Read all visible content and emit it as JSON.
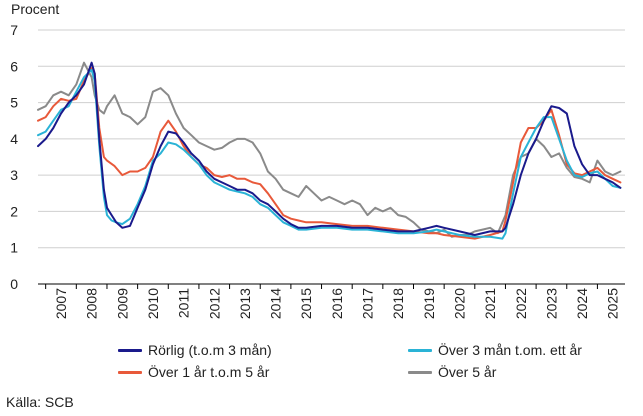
{
  "chart_data": {
    "type": "line",
    "ylabel": "Procent",
    "ylim": [
      0,
      7
    ],
    "yticks": [
      "0",
      "1",
      "2",
      "3",
      "4",
      "5",
      "6",
      "7"
    ],
    "xlim": [
      2006.75,
      2025.9
    ],
    "xticks": [
      "2007",
      "2008",
      "2009",
      "2010",
      "2011",
      "2012",
      "2013",
      "2014",
      "2015",
      "2016",
      "2017",
      "2018",
      "2019",
      "2020",
      "2021",
      "2022",
      "2023",
      "2024",
      "2025"
    ],
    "grid": "horizontal",
    "legend_position": "bottom",
    "source": "Källa: SCB",
    "series": [
      {
        "name": "Rörlig (t.o.m 3 mån)",
        "color": "#1a1a8c",
        "x": [
          2006.75,
          2007.0,
          2007.25,
          2007.5,
          2007.75,
          2008.0,
          2008.25,
          2008.5,
          2008.6,
          2008.75,
          2008.9,
          2009.0,
          2009.15,
          2009.3,
          2009.5,
          2009.75,
          2010.0,
          2010.25,
          2010.5,
          2010.75,
          2011.0,
          2011.25,
          2011.5,
          2011.75,
          2012.0,
          2012.25,
          2012.5,
          2012.75,
          2013.0,
          2013.25,
          2013.5,
          2013.75,
          2014.0,
          2014.25,
          2014.5,
          2014.75,
          2015.0,
          2015.25,
          2015.5,
          2016.0,
          2016.5,
          2017.0,
          2017.5,
          2018.0,
          2018.5,
          2019.0,
          2019.5,
          2019.75,
          2020.0,
          2020.5,
          2021.0,
          2021.5,
          2021.9,
          2022.0,
          2022.25,
          2022.5,
          2022.75,
          2023.0,
          2023.25,
          2023.5,
          2023.75,
          2024.0,
          2024.25,
          2024.5,
          2024.75,
          2025.0,
          2025.25,
          2025.5,
          2025.75
        ],
        "values": [
          3.8,
          4.0,
          4.3,
          4.7,
          5.0,
          5.2,
          5.5,
          6.1,
          5.8,
          4.0,
          2.6,
          2.1,
          1.9,
          1.7,
          1.55,
          1.6,
          2.1,
          2.6,
          3.3,
          3.8,
          4.2,
          4.15,
          3.9,
          3.6,
          3.4,
          3.1,
          2.9,
          2.8,
          2.7,
          2.6,
          2.6,
          2.5,
          2.3,
          2.2,
          2.0,
          1.8,
          1.65,
          1.55,
          1.55,
          1.6,
          1.6,
          1.55,
          1.55,
          1.5,
          1.45,
          1.45,
          1.55,
          1.6,
          1.55,
          1.45,
          1.35,
          1.45,
          1.45,
          1.55,
          2.2,
          3.0,
          3.6,
          4.0,
          4.5,
          4.9,
          4.85,
          4.7,
          3.8,
          3.3,
          3.0,
          3.0,
          2.9,
          2.8,
          2.65
        ]
      },
      {
        "name": "Över 3 mån t.om. ett år",
        "color": "#2ab3d6",
        "x": [
          2006.75,
          2007.0,
          2007.25,
          2007.5,
          2007.75,
          2008.0,
          2008.25,
          2008.5,
          2008.6,
          2008.75,
          2008.9,
          2009.0,
          2009.15,
          2009.3,
          2009.5,
          2009.75,
          2010.0,
          2010.25,
          2010.5,
          2010.75,
          2011.0,
          2011.25,
          2011.5,
          2011.75,
          2012.0,
          2012.25,
          2012.5,
          2012.75,
          2013.0,
          2013.25,
          2013.5,
          2013.75,
          2014.0,
          2014.25,
          2014.5,
          2014.75,
          2015.0,
          2015.25,
          2015.5,
          2016.0,
          2016.5,
          2017.0,
          2017.5,
          2018.0,
          2018.5,
          2019.0,
          2019.5,
          2019.75,
          2020.0,
          2020.5,
          2021.0,
          2021.5,
          2021.9,
          2022.0,
          2022.25,
          2022.5,
          2022.75,
          2023.0,
          2023.25,
          2023.5,
          2023.75,
          2024.0,
          2024.25,
          2024.5,
          2024.75,
          2025.0,
          2025.25,
          2025.5,
          2025.75
        ],
        "values": [
          4.1,
          4.2,
          4.5,
          4.8,
          4.9,
          5.3,
          5.7,
          5.9,
          5.6,
          3.8,
          2.4,
          1.9,
          1.75,
          1.7,
          1.65,
          1.8,
          2.2,
          2.7,
          3.4,
          3.6,
          3.9,
          3.85,
          3.7,
          3.5,
          3.3,
          3.0,
          2.8,
          2.7,
          2.6,
          2.55,
          2.5,
          2.4,
          2.2,
          2.1,
          1.9,
          1.7,
          1.6,
          1.5,
          1.5,
          1.55,
          1.55,
          1.5,
          1.5,
          1.45,
          1.4,
          1.4,
          1.45,
          1.5,
          1.45,
          1.35,
          1.3,
          1.3,
          1.25,
          1.4,
          2.5,
          3.5,
          3.9,
          4.3,
          4.6,
          4.6,
          4.0,
          3.4,
          3.0,
          2.95,
          3.05,
          3.1,
          2.9,
          2.7,
          2.65
        ]
      },
      {
        "name": "Över 1 år t.o.m 5 år",
        "color": "#e8593a",
        "x": [
          2006.75,
          2007.0,
          2007.25,
          2007.5,
          2007.75,
          2008.0,
          2008.25,
          2008.5,
          2008.6,
          2008.75,
          2008.9,
          2009.0,
          2009.25,
          2009.5,
          2009.75,
          2010.0,
          2010.25,
          2010.5,
          2010.75,
          2011.0,
          2011.25,
          2011.5,
          2011.75,
          2012.0,
          2012.25,
          2012.5,
          2012.75,
          2013.0,
          2013.25,
          2013.5,
          2013.75,
          2014.0,
          2014.25,
          2014.5,
          2014.75,
          2015.0,
          2015.25,
          2015.5,
          2016.0,
          2016.5,
          2017.0,
          2017.5,
          2018.0,
          2018.5,
          2019.0,
          2019.5,
          2019.75,
          2020.0,
          2020.5,
          2021.0,
          2021.5,
          2021.9,
          2022.0,
          2022.25,
          2022.5,
          2022.75,
          2023.0,
          2023.25,
          2023.5,
          2023.75,
          2024.0,
          2024.25,
          2024.5,
          2024.75,
          2025.0,
          2025.25,
          2025.5,
          2025.75
        ],
        "values": [
          4.5,
          4.6,
          4.9,
          5.1,
          5.05,
          5.1,
          5.6,
          5.95,
          5.8,
          4.3,
          3.5,
          3.4,
          3.25,
          3.0,
          3.1,
          3.1,
          3.2,
          3.5,
          4.2,
          4.5,
          4.2,
          3.8,
          3.5,
          3.3,
          3.2,
          3.0,
          2.95,
          3.0,
          2.9,
          2.9,
          2.8,
          2.75,
          2.5,
          2.2,
          1.9,
          1.8,
          1.75,
          1.7,
          1.7,
          1.65,
          1.6,
          1.6,
          1.55,
          1.5,
          1.45,
          1.4,
          1.4,
          1.35,
          1.3,
          1.25,
          1.35,
          1.45,
          1.75,
          2.8,
          3.9,
          4.3,
          4.3,
          4.5,
          4.8,
          4.1,
          3.3,
          3.05,
          3.0,
          3.1,
          3.2,
          3.0,
          2.9,
          2.8
        ]
      },
      {
        "name": "Över 5 år",
        "color": "#8a8a8a",
        "x": [
          2006.75,
          2007.0,
          2007.25,
          2007.5,
          2007.75,
          2008.0,
          2008.25,
          2008.5,
          2008.6,
          2008.75,
          2008.9,
          2009.0,
          2009.25,
          2009.5,
          2009.75,
          2010.0,
          2010.25,
          2010.5,
          2010.75,
          2011.0,
          2011.25,
          2011.5,
          2011.75,
          2012.0,
          2012.25,
          2012.5,
          2012.75,
          2013.0,
          2013.25,
          2013.5,
          2013.75,
          2014.0,
          2014.25,
          2014.5,
          2014.75,
          2015.0,
          2015.25,
          2015.5,
          2015.75,
          2016.0,
          2016.25,
          2016.5,
          2016.75,
          2017.0,
          2017.25,
          2017.5,
          2017.75,
          2018.0,
          2018.25,
          2018.5,
          2018.75,
          2019.0,
          2019.25,
          2019.5,
          2019.75,
          2020.0,
          2020.25,
          2020.5,
          2020.75,
          2021.0,
          2021.25,
          2021.5,
          2021.75,
          2022.0,
          2022.25,
          2022.5,
          2022.75,
          2023.0,
          2023.25,
          2023.5,
          2023.75,
          2024.0,
          2024.25,
          2024.5,
          2024.75,
          2025.0,
          2025.25,
          2025.5,
          2025.75
        ],
        "values": [
          4.8,
          4.9,
          5.2,
          5.3,
          5.2,
          5.5,
          6.1,
          5.7,
          5.2,
          4.8,
          4.7,
          4.9,
          5.2,
          4.7,
          4.6,
          4.4,
          4.6,
          5.3,
          5.4,
          5.2,
          4.7,
          4.3,
          4.1,
          3.9,
          3.8,
          3.7,
          3.75,
          3.9,
          4.0,
          4.0,
          3.9,
          3.6,
          3.1,
          2.9,
          2.6,
          2.5,
          2.4,
          2.7,
          2.5,
          2.3,
          2.4,
          2.3,
          2.2,
          2.3,
          2.2,
          1.9,
          2.1,
          2.0,
          2.1,
          1.9,
          1.85,
          1.7,
          1.5,
          1.45,
          1.4,
          1.5,
          1.3,
          1.35,
          1.35,
          1.45,
          1.5,
          1.55,
          1.4,
          1.9,
          3.0,
          3.5,
          3.6,
          4.0,
          3.8,
          3.5,
          3.6,
          3.2,
          2.95,
          2.9,
          2.8,
          3.4,
          3.1,
          3.0,
          3.1
        ]
      }
    ]
  }
}
